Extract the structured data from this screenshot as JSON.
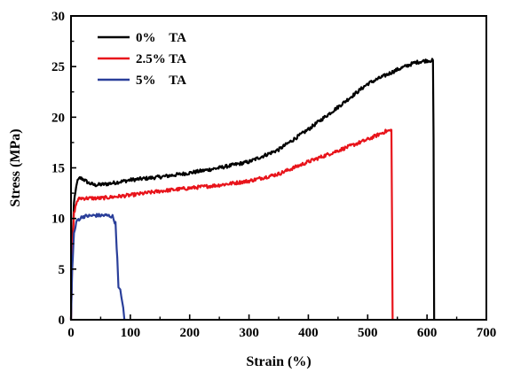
{
  "chart_data": {
    "type": "line",
    "title": "",
    "xlabel": "Strain (%)",
    "ylabel": "Stress (MPa)",
    "xlim": [
      0,
      700
    ],
    "ylim": [
      0,
      30
    ],
    "x_ticks": [
      "0",
      "100",
      "200",
      "300",
      "400",
      "500",
      "600",
      "700"
    ],
    "y_ticks": [
      "0",
      "5",
      "10",
      "15",
      "20",
      "25",
      "30"
    ],
    "grid": false,
    "legend_position": "top-left",
    "series": [
      {
        "name": "0%    TA",
        "color": "#000000",
        "points": [
          [
            0,
            0
          ],
          [
            2,
            7
          ],
          [
            5,
            11.5
          ],
          [
            10,
            13.6
          ],
          [
            15,
            14.0
          ],
          [
            20,
            13.9
          ],
          [
            30,
            13.5
          ],
          [
            40,
            13.3
          ],
          [
            60,
            13.4
          ],
          [
            100,
            13.8
          ],
          [
            150,
            14.1
          ],
          [
            200,
            14.5
          ],
          [
            250,
            15.0
          ],
          [
            300,
            15.6
          ],
          [
            350,
            16.8
          ],
          [
            400,
            18.8
          ],
          [
            450,
            21.0
          ],
          [
            500,
            23.3
          ],
          [
            550,
            24.7
          ],
          [
            580,
            25.4
          ],
          [
            600,
            25.6
          ],
          [
            610,
            25.6
          ],
          [
            611,
            18
          ],
          [
            612,
            0
          ]
        ]
      },
      {
        "name": "2.5% TA",
        "color": "#e8141b",
        "points": [
          [
            0,
            0
          ],
          [
            2,
            6
          ],
          [
            5,
            10.5
          ],
          [
            10,
            11.7
          ],
          [
            15,
            12.0
          ],
          [
            25,
            12.0
          ],
          [
            50,
            12.0
          ],
          [
            100,
            12.3
          ],
          [
            150,
            12.7
          ],
          [
            200,
            13.0
          ],
          [
            250,
            13.3
          ],
          [
            300,
            13.7
          ],
          [
            350,
            14.4
          ],
          [
            400,
            15.6
          ],
          [
            450,
            16.7
          ],
          [
            500,
            17.8
          ],
          [
            530,
            18.6
          ],
          [
            540,
            18.7
          ],
          [
            541,
            10
          ],
          [
            542,
            0
          ]
        ]
      },
      {
        "name": "5%    TA",
        "color": "#2a3f9a",
        "points": [
          [
            0,
            0
          ],
          [
            2,
            5
          ],
          [
            5,
            8.5
          ],
          [
            10,
            9.8
          ],
          [
            20,
            10.2
          ],
          [
            40,
            10.3
          ],
          [
            60,
            10.3
          ],
          [
            70,
            10.2
          ],
          [
            75,
            9.5
          ],
          [
            78,
            6
          ],
          [
            80,
            3.2
          ],
          [
            83,
            3.0
          ],
          [
            85,
            2.2
          ],
          [
            88,
            1.2
          ],
          [
            90,
            0
          ]
        ]
      }
    ]
  }
}
